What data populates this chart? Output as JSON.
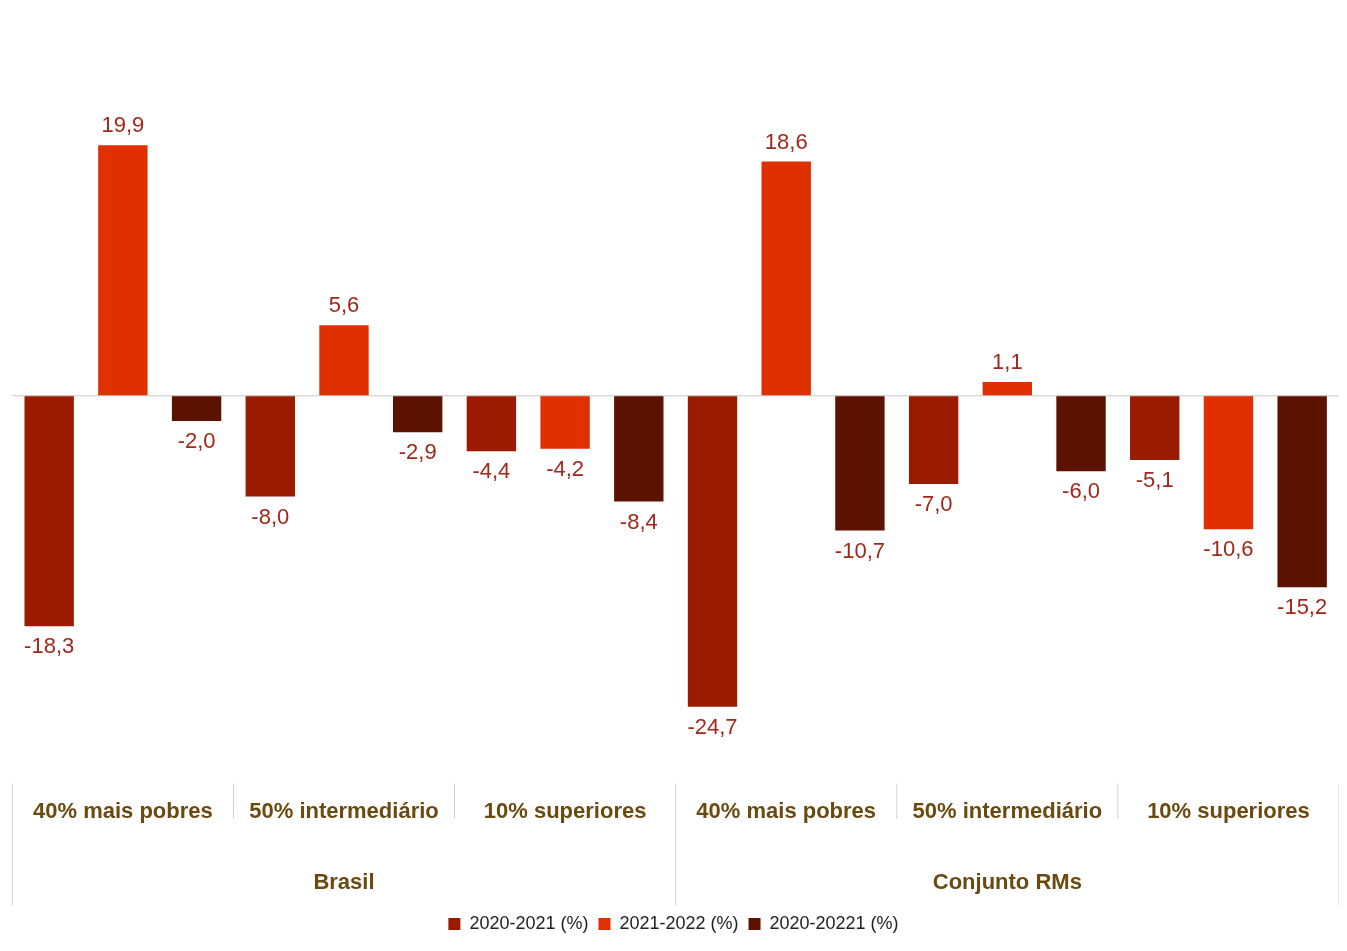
{
  "chart_data": {
    "type": "bar",
    "categories": [
      "40% mais pobres",
      "50% intermediário",
      "10% superiores",
      "40% mais pobres",
      "50% intermediário",
      "10% superiores"
    ],
    "series": [
      {
        "name": "2020-2021 (%)",
        "color": "#9a1b00",
        "values": [
          -18.3,
          -8.0,
          -4.4,
          -24.7,
          -7.0,
          -5.1
        ],
        "value_labels": [
          "-18,3",
          "-8,0",
          "-4,4",
          "-24,7",
          "-7,0",
          "-5,1"
        ]
      },
      {
        "name": "2021-2022 (%)",
        "color": "#e03000",
        "values": [
          19.9,
          5.6,
          -4.2,
          18.6,
          1.1,
          -10.6
        ],
        "value_labels": [
          "19,9",
          "5,6",
          "-4,2",
          "18,6",
          "1,1",
          "-10,6"
        ]
      },
      {
        "name": "2020-20221 (%)",
        "color": "#5c1200",
        "values": [
          -2.0,
          -2.9,
          -8.4,
          -10.7,
          -6.0,
          -15.2
        ],
        "value_labels": [
          "-2,0",
          "-2,9",
          "-8,4",
          "-10,7",
          "-6,0",
          "-15,2"
        ]
      }
    ],
    "annotations": [
      "Brasil",
      "Conjunto RMs"
    ],
    "legend": "bottom",
    "grid": false
  }
}
